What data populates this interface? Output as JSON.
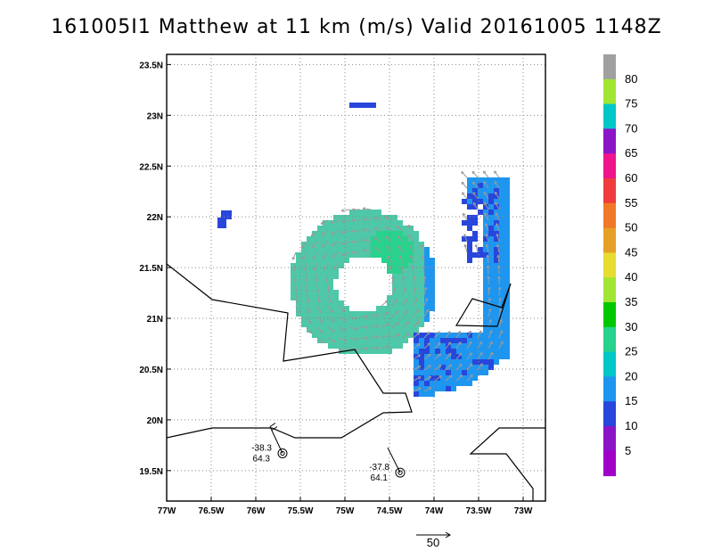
{
  "title": "161005I1 Matthew at 11 km (m/s) Valid 20161005 1148Z",
  "map": {
    "lat_labels": [
      "23.5N",
      "23N",
      "22.5N",
      "22N",
      "21.5N",
      "21N",
      "20.5N",
      "20N",
      "19.5N"
    ],
    "lon_labels": [
      "77W",
      "76.5W",
      "76W",
      "75.5W",
      "75W",
      "74.5W",
      "74W",
      "73.5W",
      "73W"
    ],
    "lat_range": [
      19.2,
      23.6
    ],
    "lon_range": [
      -77.0,
      -72.75
    ],
    "grid": "dotted"
  },
  "colorbar": {
    "labels": [
      "80",
      "75",
      "70",
      "65",
      "60",
      "55",
      "50",
      "45",
      "40",
      "35",
      "30",
      "25",
      "20",
      "15",
      "10",
      "5"
    ],
    "colors": [
      "#a0a0a0",
      "#a0e632",
      "#00c8c8",
      "#8c14c8",
      "#f0148c",
      "#f03c3c",
      "#f07828",
      "#e6a028",
      "#e6dc32",
      "#a0e632",
      "#00c800",
      "#28d28c",
      "#00c8c8",
      "#1e96f0",
      "#2846dc",
      "#8c14c8",
      "#a000c8"
    ]
  },
  "stations": [
    {
      "label_top": "-38.3",
      "label_bottom": "64.3",
      "lon": -75.7,
      "lat": 19.67
    },
    {
      "label_top": "-37.8",
      "label_bottom": "64.1",
      "lon": -74.38,
      "lat": 19.48
    }
  ],
  "reference_vector": {
    "label": "50"
  }
}
